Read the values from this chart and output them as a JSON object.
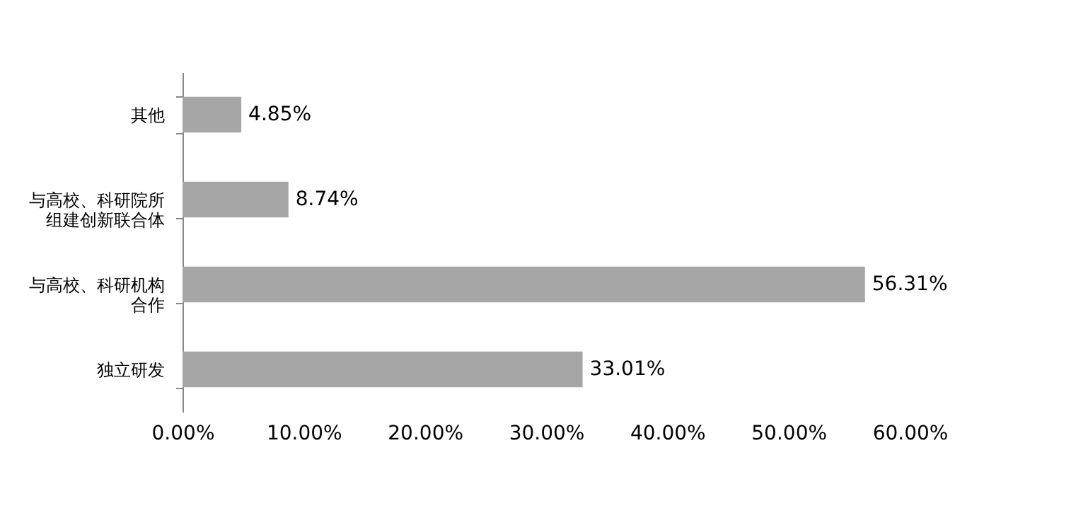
{
  "chart_data": {
    "type": "bar",
    "orientation": "horizontal",
    "categories": [
      "其他",
      "与高校、科研院所组建创新联合体",
      "与高校、科研机构合作",
      "独立研发"
    ],
    "values": [
      4.85,
      8.74,
      56.31,
      33.01
    ],
    "value_labels": [
      "4.85%",
      "8.74%",
      "56.31%",
      "33.01%"
    ],
    "color": "#a6a6a6",
    "xlim": [
      0,
      60
    ],
    "xticks": [
      {
        "value": 0,
        "label": "0.00%"
      },
      {
        "value": 10,
        "label": "10.00%"
      },
      {
        "value": 20,
        "label": "20.00%"
      },
      {
        "value": 30,
        "label": "30.00%"
      },
      {
        "value": 40,
        "label": "40.00%"
      },
      {
        "value": 50,
        "label": "50.00%"
      },
      {
        "value": 60,
        "label": "60.00%"
      }
    ],
    "grid": false
  }
}
